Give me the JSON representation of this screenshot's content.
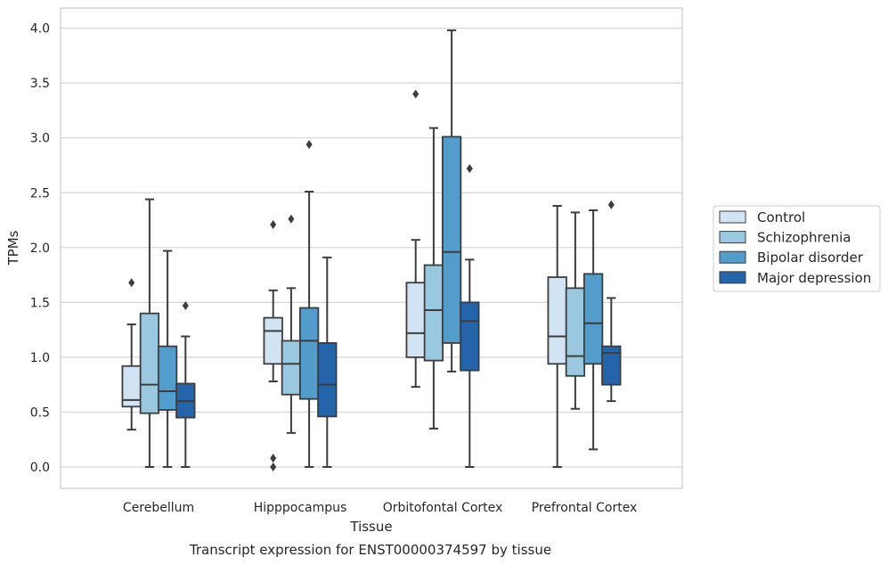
{
  "chart_data": {
    "type": "box",
    "title": "",
    "caption": "Transcript expression for ENST00000374597 by tissue",
    "xlabel": "Tissue",
    "ylabel": "TPMs",
    "ylim": [
      -0.19,
      4.19
    ],
    "yticks": [
      0.0,
      0.5,
      1.0,
      1.5,
      2.0,
      2.5,
      3.0,
      3.5,
      4.0
    ],
    "ytick_labels": [
      "0.0",
      "0.5",
      "1.0",
      "1.5",
      "2.0",
      "2.5",
      "3.0",
      "3.5",
      "4.0"
    ],
    "grid": true,
    "legend_position": "right",
    "categories": [
      "Cerebellum",
      "Hipppocampus",
      "Orbitofontal Cortex",
      "Prefrontal Cortex"
    ],
    "colors": [
      "#d2e3f3",
      "#9ac8e0",
      "#529dcc",
      "#2464ab"
    ],
    "series": [
      {
        "name": "Control",
        "boxes": [
          {
            "whisker_low": 0.34,
            "q1": 0.55,
            "median": 0.61,
            "q3": 0.92,
            "whisker_high": 1.3,
            "outliers": [
              1.68
            ]
          },
          {
            "whisker_low": 0.78,
            "q1": 0.94,
            "median": 1.24,
            "q3": 1.36,
            "whisker_high": 1.61,
            "outliers": [
              0.0,
              0.08,
              2.21
            ]
          },
          {
            "whisker_low": 0.73,
            "q1": 1.0,
            "median": 1.22,
            "q3": 1.68,
            "whisker_high": 2.07,
            "outliers": [
              3.4
            ]
          },
          {
            "whisker_low": 0.0,
            "q1": 0.94,
            "median": 1.19,
            "q3": 1.73,
            "whisker_high": 2.38,
            "outliers": []
          }
        ]
      },
      {
        "name": "Schizophrenia",
        "boxes": [
          {
            "whisker_low": 0.0,
            "q1": 0.49,
            "median": 0.75,
            "q3": 1.4,
            "whisker_high": 2.44,
            "outliers": []
          },
          {
            "whisker_low": 0.31,
            "q1": 0.66,
            "median": 0.94,
            "q3": 1.15,
            "whisker_high": 1.63,
            "outliers": [
              2.26
            ]
          },
          {
            "whisker_low": 0.35,
            "q1": 0.97,
            "median": 1.43,
            "q3": 1.84,
            "whisker_high": 3.09,
            "outliers": []
          },
          {
            "whisker_low": 0.53,
            "q1": 0.83,
            "median": 1.01,
            "q3": 1.63,
            "whisker_high": 2.32,
            "outliers": []
          }
        ]
      },
      {
        "name": "Bipolar disorder",
        "boxes": [
          {
            "whisker_low": 0.0,
            "q1": 0.52,
            "median": 0.69,
            "q3": 1.1,
            "whisker_high": 1.97,
            "outliers": []
          },
          {
            "whisker_low": 0.0,
            "q1": 0.62,
            "median": 1.15,
            "q3": 1.45,
            "whisker_high": 2.51,
            "outliers": [
              2.94
            ]
          },
          {
            "whisker_low": 0.87,
            "q1": 1.13,
            "median": 1.96,
            "q3": 3.01,
            "whisker_high": 3.98,
            "outliers": []
          },
          {
            "whisker_low": 0.16,
            "q1": 0.94,
            "median": 1.31,
            "q3": 1.76,
            "whisker_high": 2.34,
            "outliers": []
          }
        ]
      },
      {
        "name": "Major depression",
        "boxes": [
          {
            "whisker_low": 0.0,
            "q1": 0.45,
            "median": 0.6,
            "q3": 0.76,
            "whisker_high": 1.19,
            "outliers": [
              1.47
            ]
          },
          {
            "whisker_low": 0.0,
            "q1": 0.46,
            "median": 0.75,
            "q3": 1.13,
            "whisker_high": 1.91,
            "outliers": []
          },
          {
            "whisker_low": 0.0,
            "q1": 0.88,
            "median": 1.33,
            "q3": 1.5,
            "whisker_high": 1.89,
            "outliers": [
              2.72
            ]
          },
          {
            "whisker_low": 0.6,
            "q1": 0.75,
            "median": 1.04,
            "q3": 1.1,
            "whisker_high": 1.54,
            "outliers": [
              2.39
            ]
          }
        ]
      }
    ]
  }
}
